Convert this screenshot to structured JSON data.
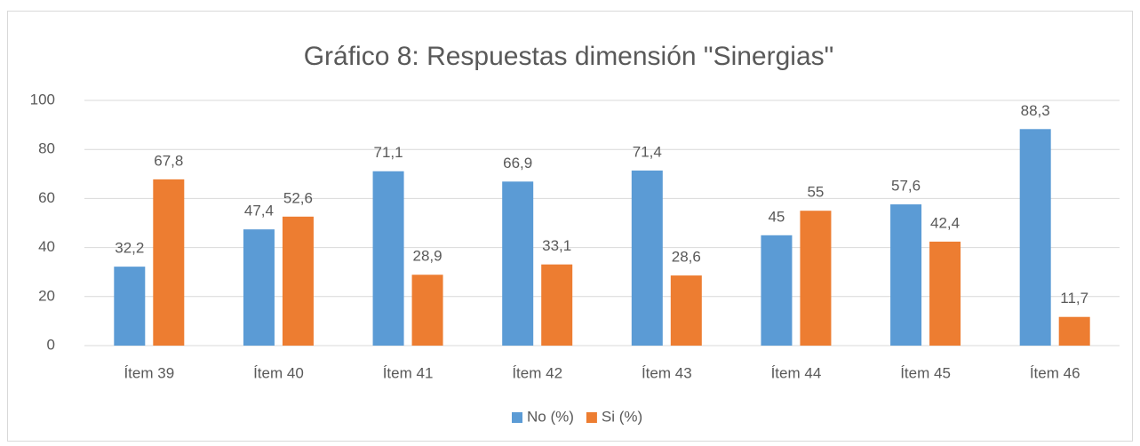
{
  "chart_data": {
    "type": "bar",
    "title": "Gráfico 8: Respuestas dimensión \"Sinergias\"",
    "categories": [
      "Ítem 39",
      "Ítem 40",
      "Ítem 41",
      "Ítem 42",
      "Ítem 43",
      "Ítem 44",
      "Ítem 45",
      "Ítem 46"
    ],
    "series": [
      {
        "name": "No (%)",
        "color": "#5b9bd5",
        "values": [
          32.2,
          47.4,
          71.1,
          66.9,
          71.4,
          45,
          57.6,
          88.3
        ],
        "value_labels": [
          "32,2",
          "47,4",
          "71,1",
          "66,9",
          "71,4",
          "45",
          "57,6",
          "88,3"
        ]
      },
      {
        "name": "Si (%)",
        "color": "#ed7d31",
        "values": [
          67.8,
          52.6,
          28.9,
          33.1,
          28.6,
          55,
          42.4,
          11.7
        ],
        "value_labels": [
          "67,8",
          "52,6",
          "28,9",
          "33,1",
          "28,6",
          "55",
          "42,4",
          "11,7"
        ]
      }
    ],
    "ylim": [
      0,
      100
    ],
    "yticks": [
      0,
      20,
      40,
      60,
      80,
      100
    ],
    "grid": true,
    "legend": "bottom"
  }
}
